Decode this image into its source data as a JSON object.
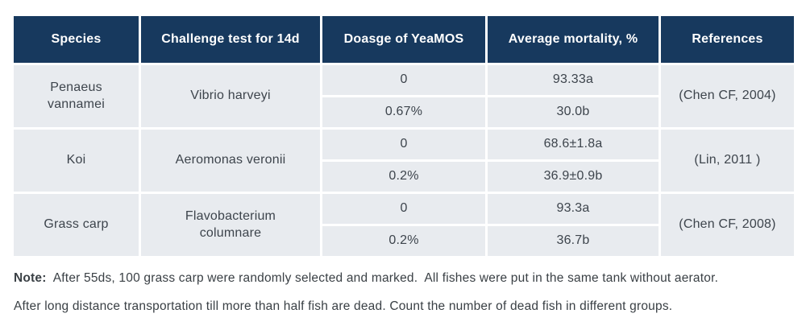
{
  "table": {
    "columns": [
      "Species",
      "Challenge test for 14d",
      "Doasge of YeaMOS",
      "Average mortality, %",
      "References"
    ],
    "groups": [
      {
        "species": "Penaeus vannamei",
        "challenge": "Vibrio harveyi",
        "rows": [
          {
            "dosage": "0",
            "mortality": "93.33a"
          },
          {
            "dosage": "0.67%",
            "mortality": "30.0b"
          }
        ],
        "reference": "(Chen CF, 2004)"
      },
      {
        "species": "Koi",
        "challenge": "Aeromonas veronii",
        "rows": [
          {
            "dosage": "0",
            "mortality": "68.6±1.8a"
          },
          {
            "dosage": "0.2%",
            "mortality": "36.9±0.9b"
          }
        ],
        "reference": "(Lin, 2011 )"
      },
      {
        "species": "Grass carp",
        "challenge": "Flavobacterium columnare",
        "rows": [
          {
            "dosage": "0",
            "mortality": "93.3a"
          },
          {
            "dosage": "0.2%",
            "mortality": "36.7b"
          }
        ],
        "reference": "(Chen CF, 2008)"
      }
    ]
  },
  "note": {
    "label": "Note:",
    "line1": "  After 55ds, 100 grass carp were randomly selected and marked.  All fishes were put in the same tank without aerator.",
    "line2": "After long distance transportation till more than half fish are dead. Count the number of dead fish in different groups."
  },
  "colors": {
    "header_bg": "#17395e",
    "cell_bg": "#e8ebef",
    "header_text": "#ffffff",
    "cell_text": "#3d444c",
    "page_bg": "#ffffff"
  }
}
